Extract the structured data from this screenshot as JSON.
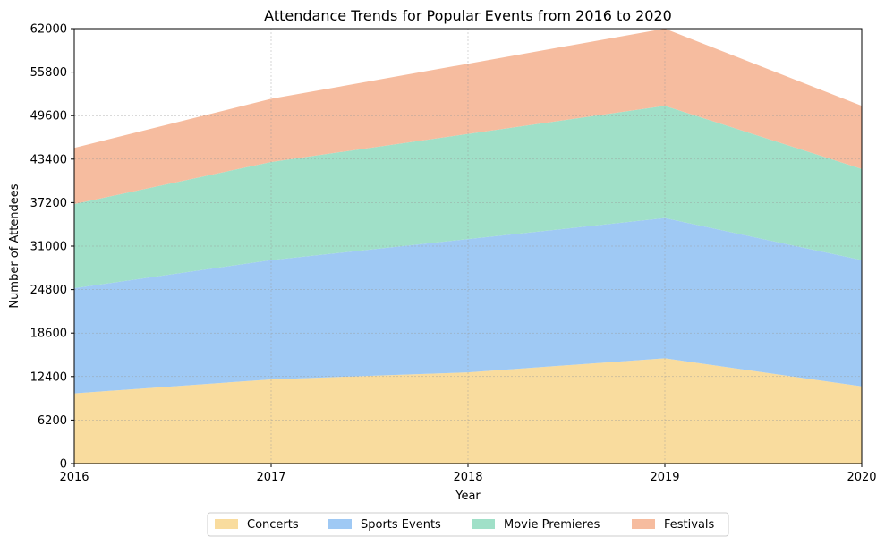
{
  "chart_data": {
    "type": "area",
    "stacked": true,
    "title": "Attendance Trends for Popular Events from 2016 to 2020",
    "xlabel": "Year",
    "ylabel": "Number of Attendees",
    "x": [
      "2016",
      "2017",
      "2018",
      "2019",
      "2020"
    ],
    "xlim": [
      2016,
      2020
    ],
    "ylim": [
      0,
      62000
    ],
    "yticks": [
      "0",
      "6200",
      "12400",
      "18600",
      "24800",
      "31000",
      "37200",
      "43400",
      "49600",
      "55800",
      "62000"
    ],
    "grid": true,
    "legend_position": "bottom-center",
    "series": [
      {
        "name": "Concerts",
        "color": "#f9dc9e",
        "values": [
          10000,
          12000,
          13000,
          15000,
          11000
        ]
      },
      {
        "name": "Sports Events",
        "color": "#9fc9f4",
        "values": [
          15000,
          17000,
          19000,
          20000,
          18000
        ]
      },
      {
        "name": "Movie Premieres",
        "color": "#a0e0c8",
        "values": [
          12000,
          14000,
          15000,
          16000,
          13000
        ]
      },
      {
        "name": "Festivals",
        "color": "#f6bc9f",
        "values": [
          8000,
          9000,
          10000,
          11000,
          9000
        ]
      }
    ]
  }
}
